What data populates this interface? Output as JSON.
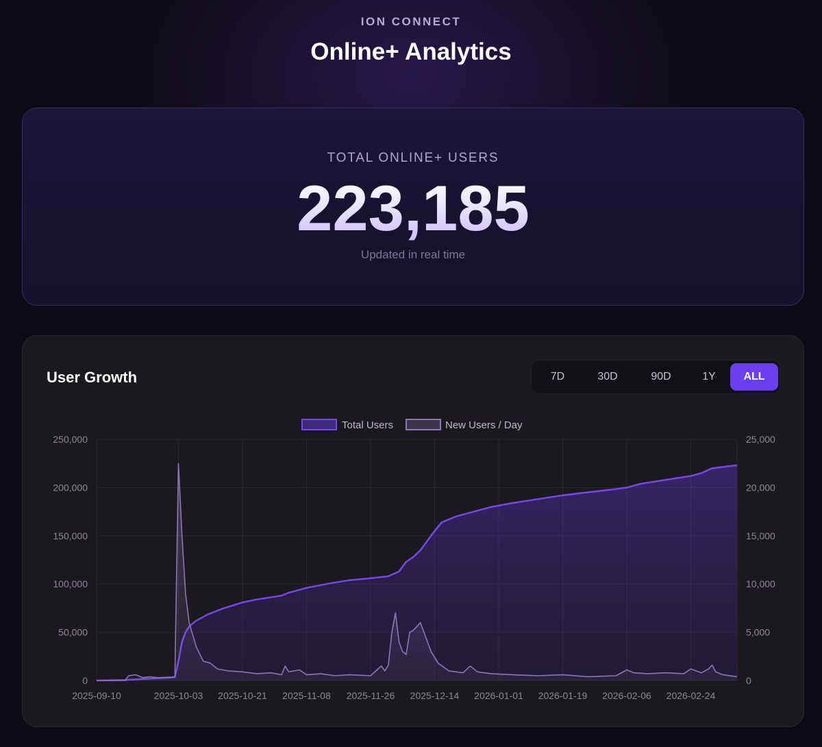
{
  "header": {
    "eyebrow": "ION CONNECT",
    "title": "Online+ Analytics"
  },
  "stat": {
    "label": "TOTAL ONLINE+ USERS",
    "value": "223,185",
    "sub": "Updated in real time"
  },
  "chart_section": {
    "title": "User Growth",
    "ranges": [
      {
        "label": "7D",
        "active": false
      },
      {
        "label": "30D",
        "active": false
      },
      {
        "label": "90D",
        "active": false
      },
      {
        "label": "1Y",
        "active": false
      },
      {
        "label": "ALL",
        "active": true
      }
    ]
  },
  "colors": {
    "accent": "#6a3ff2",
    "total_line": "#7448ec",
    "new_line": "#8a76b8"
  },
  "chart_data": {
    "type": "line",
    "title": "",
    "xlabel": "",
    "ylabel": "",
    "legend_position": "top-center",
    "grid": true,
    "x_range": [
      "2025-09-10",
      "2026-03-09"
    ],
    "x_ticks": [
      "2025-09-10",
      "2025-10-03",
      "2025-10-21",
      "2025-11-08",
      "2025-11-26",
      "2025-12-14",
      "2026-01-01",
      "2026-01-19",
      "2026-02-06",
      "2026-02-24"
    ],
    "y_left": {
      "ticks": [
        "0",
        "50,000",
        "100,000",
        "150,000",
        "200,000",
        "250,000"
      ],
      "range": [
        0,
        250000
      ]
    },
    "y_right": {
      "ticks": [
        "0",
        "5,000",
        "10,000",
        "15,000",
        "20,000",
        "25,000"
      ],
      "range": [
        0,
        25000
      ]
    },
    "series": [
      {
        "name": "Total Users",
        "axis": "left",
        "fill": true,
        "points": [
          [
            "2025-09-10",
            0
          ],
          [
            "2025-09-18",
            500
          ],
          [
            "2025-09-25",
            2000
          ],
          [
            "2025-10-01",
            3000
          ],
          [
            "2025-10-02",
            3500
          ],
          [
            "2025-10-03",
            20000
          ],
          [
            "2025-10-04",
            40000
          ],
          [
            "2025-10-05",
            50000
          ],
          [
            "2025-10-06",
            56000
          ],
          [
            "2025-10-08",
            62000
          ],
          [
            "2025-10-11",
            68000
          ],
          [
            "2025-10-15",
            74000
          ],
          [
            "2025-10-21",
            81000
          ],
          [
            "2025-10-25",
            84000
          ],
          [
            "2025-11-01",
            88000
          ],
          [
            "2025-11-03",
            91000
          ],
          [
            "2025-11-08",
            96000
          ],
          [
            "2025-11-15",
            101000
          ],
          [
            "2025-11-20",
            104000
          ],
          [
            "2025-11-26",
            106000
          ],
          [
            "2025-12-01",
            108000
          ],
          [
            "2025-12-04",
            113000
          ],
          [
            "2025-12-06",
            123000
          ],
          [
            "2025-12-08",
            128000
          ],
          [
            "2025-12-10",
            135000
          ],
          [
            "2025-12-12",
            145000
          ],
          [
            "2025-12-14",
            155000
          ],
          [
            "2025-12-16",
            164000
          ],
          [
            "2025-12-20",
            170000
          ],
          [
            "2025-12-25",
            175000
          ],
          [
            "2025-12-30",
            180000
          ],
          [
            "2026-01-05",
            184000
          ],
          [
            "2026-01-12",
            188000
          ],
          [
            "2026-01-19",
            192000
          ],
          [
            "2026-01-26",
            195000
          ],
          [
            "2026-02-02",
            198000
          ],
          [
            "2026-02-06",
            200000
          ],
          [
            "2026-02-10",
            204000
          ],
          [
            "2026-02-17",
            208000
          ],
          [
            "2026-02-24",
            212000
          ],
          [
            "2026-02-27",
            215000
          ],
          [
            "2026-03-02",
            220000
          ],
          [
            "2026-03-09",
            223185
          ]
        ]
      },
      {
        "name": "New Users / Day",
        "axis": "right",
        "fill": true,
        "points": [
          [
            "2025-09-10",
            0
          ],
          [
            "2025-09-18",
            0
          ],
          [
            "2025-09-19",
            500
          ],
          [
            "2025-09-21",
            600
          ],
          [
            "2025-09-23",
            300
          ],
          [
            "2025-09-25",
            400
          ],
          [
            "2025-09-27",
            300
          ],
          [
            "2025-10-01",
            350
          ],
          [
            "2025-10-02",
            400
          ],
          [
            "2025-10-03",
            22500
          ],
          [
            "2025-10-04",
            15000
          ],
          [
            "2025-10-05",
            9000
          ],
          [
            "2025-10-06",
            6000
          ],
          [
            "2025-10-08",
            3500
          ],
          [
            "2025-10-10",
            2000
          ],
          [
            "2025-10-12",
            1800
          ],
          [
            "2025-10-14",
            1200
          ],
          [
            "2025-10-17",
            1000
          ],
          [
            "2025-10-21",
            900
          ],
          [
            "2025-10-25",
            700
          ],
          [
            "2025-10-29",
            800
          ],
          [
            "2025-11-01",
            600
          ],
          [
            "2025-11-02",
            1500
          ],
          [
            "2025-11-03",
            900
          ],
          [
            "2025-11-06",
            1100
          ],
          [
            "2025-11-08",
            600
          ],
          [
            "2025-11-12",
            700
          ],
          [
            "2025-11-16",
            500
          ],
          [
            "2025-11-20",
            600
          ],
          [
            "2025-11-26",
            500
          ],
          [
            "2025-11-29",
            1500
          ],
          [
            "2025-11-30",
            1000
          ],
          [
            "2025-12-01",
            1600
          ],
          [
            "2025-12-02",
            5000
          ],
          [
            "2025-12-03",
            7000
          ],
          [
            "2025-12-04",
            4000
          ],
          [
            "2025-12-05",
            3000
          ],
          [
            "2025-12-06",
            2700
          ],
          [
            "2025-12-07",
            5000
          ],
          [
            "2025-12-08",
            5200
          ],
          [
            "2025-12-09",
            5600
          ],
          [
            "2025-12-10",
            6000
          ],
          [
            "2025-12-11",
            5000
          ],
          [
            "2025-12-13",
            3000
          ],
          [
            "2025-12-15",
            1800
          ],
          [
            "2025-12-18",
            1000
          ],
          [
            "2025-12-22",
            800
          ],
          [
            "2025-12-24",
            1500
          ],
          [
            "2025-12-26",
            900
          ],
          [
            "2025-12-30",
            700
          ],
          [
            "2026-01-05",
            600
          ],
          [
            "2026-01-12",
            500
          ],
          [
            "2026-01-19",
            600
          ],
          [
            "2026-01-26",
            400
          ],
          [
            "2026-02-03",
            500
          ],
          [
            "2026-02-06",
            1100
          ],
          [
            "2026-02-08",
            800
          ],
          [
            "2026-02-12",
            700
          ],
          [
            "2026-02-17",
            800
          ],
          [
            "2026-02-22",
            700
          ],
          [
            "2026-02-24",
            1200
          ],
          [
            "2026-02-27",
            800
          ],
          [
            "2026-03-01",
            1200
          ],
          [
            "2026-03-02",
            1600
          ],
          [
            "2026-03-03",
            900
          ],
          [
            "2026-03-05",
            600
          ],
          [
            "2026-03-09",
            400
          ]
        ]
      }
    ]
  }
}
